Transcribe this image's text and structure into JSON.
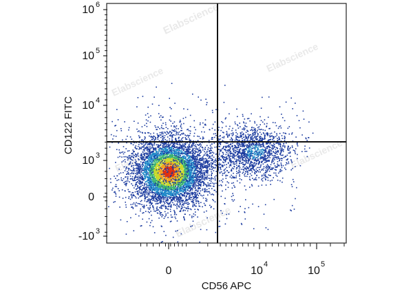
{
  "chart_data": {
    "type": "scatter",
    "style": "flow-cytometry pseudocolor density dot plot",
    "xlabel": "CD56 APC",
    "ylabel": "CD122 FITC",
    "x_scale": "biexponential",
    "y_scale": "biexponential",
    "x_ticks": [
      {
        "value": 0,
        "label": "0"
      },
      {
        "value": 10000,
        "label": "10",
        "exp": "4"
      },
      {
        "value": 100000,
        "label": "10",
        "exp": "5"
      }
    ],
    "y_ticks": [
      {
        "value": -1000,
        "label": "-10",
        "exp": "3"
      },
      {
        "value": 0,
        "label": "0"
      },
      {
        "value": 1000,
        "label": "10",
        "exp": "3"
      },
      {
        "value": 10000,
        "label": "10",
        "exp": "4"
      },
      {
        "value": 100000,
        "label": "10",
        "exp": "5"
      },
      {
        "value": 1000000,
        "label": "10",
        "exp": "6"
      }
    ],
    "quadrant_gate": {
      "x": 2500,
      "y": 2500
    },
    "populations": [
      {
        "name": "CD56- CD122low",
        "center_x": 0,
        "center_y": 700,
        "density": "high"
      },
      {
        "name": "CD56+ CD122+",
        "center_x": 9000,
        "center_y": 2500,
        "density": "low"
      }
    ],
    "density_colors": [
      "#1a3a9e",
      "#1e88c8",
      "#3cb371",
      "#c8d82a",
      "#f4a020",
      "#e03010"
    ],
    "grid": false,
    "legend": "none"
  },
  "watermark": "Elabscience"
}
